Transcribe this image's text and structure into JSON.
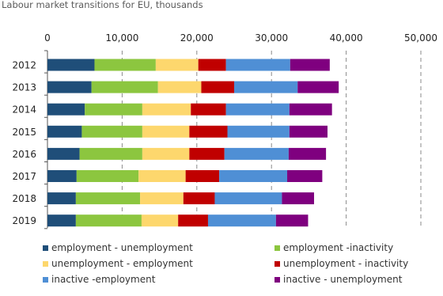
{
  "chart_data": {
    "type": "bar",
    "orientation": "horizontal",
    "stacked": true,
    "title": "Labour market transitions for EU, thousands",
    "categories": [
      "2012",
      "2013",
      "2014",
      "2015",
      "2016",
      "2017",
      "2018",
      "2019"
    ],
    "xlim": [
      0,
      50000
    ],
    "xticks": [
      0,
      10000,
      20000,
      30000,
      40000,
      50000
    ],
    "xtick_labels": [
      "0",
      "10,000",
      "20,000",
      "30,000",
      "40,000",
      "50,000"
    ],
    "grid": "vertical dashed",
    "legend_position": "bottom",
    "series": [
      {
        "name": "employment - unemployment",
        "color": "#1f4e79",
        "values": [
          6300,
          5900,
          5000,
          4600,
          4300,
          3900,
          3800,
          3800
        ]
      },
      {
        "name": "employment -inactivity",
        "color": "#8cc63f",
        "values": [
          8200,
          8900,
          7700,
          8100,
          8400,
          8300,
          8600,
          8800
        ]
      },
      {
        "name": "unemployment - employment",
        "color": "#fdd76d",
        "values": [
          5700,
          5800,
          6500,
          6300,
          6300,
          6300,
          5800,
          4900
        ]
      },
      {
        "name": "unemployment - inactivity",
        "color": "#c00000",
        "values": [
          3700,
          4400,
          4700,
          5100,
          4700,
          4500,
          4200,
          4000
        ]
      },
      {
        "name": "inactive -employment",
        "color": "#4f8fd5",
        "values": [
          8600,
          8500,
          8500,
          8300,
          8600,
          9100,
          9000,
          9100
        ]
      },
      {
        "name": "inactive - unemployment",
        "color": "#7f007f",
        "values": [
          5300,
          5500,
          5700,
          5100,
          5000,
          4700,
          4300,
          4300
        ]
      }
    ]
  }
}
